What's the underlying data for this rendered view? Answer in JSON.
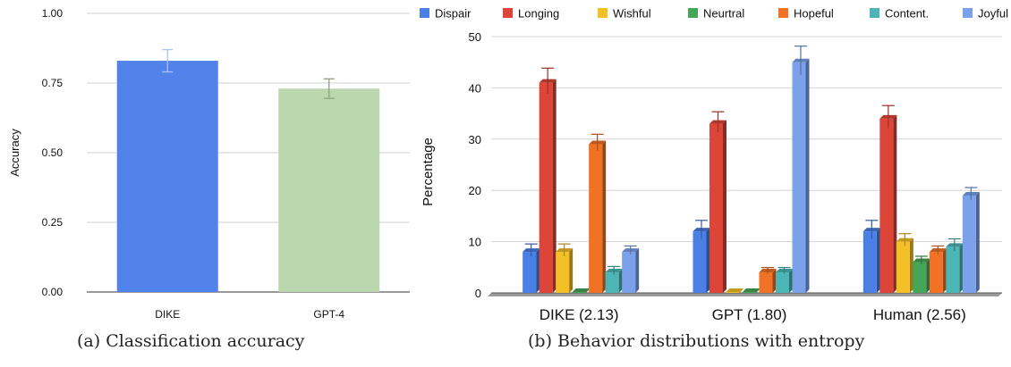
{
  "captions": {
    "a": "(a) Classification accuracy",
    "b": "(b) Behavior distributions with entropy"
  },
  "chart_data": [
    {
      "type": "bar",
      "title": "",
      "xlabel": "",
      "ylabel": "Accuracy",
      "ylim": [
        0,
        1
      ],
      "yticks": [
        "0.00",
        "0.25",
        "0.50",
        "0.75",
        "1.00"
      ],
      "categories": [
        "DIKE",
        "GPT-4"
      ],
      "values": [
        0.83,
        0.73
      ],
      "errors": [
        0.04,
        0.035
      ],
      "colors": [
        "#5183ea",
        "#bad7ad"
      ],
      "error_colors": [
        "#a9c2f3",
        "#8fa283"
      ],
      "grid": true,
      "legend": "none"
    },
    {
      "type": "bar",
      "title": "",
      "xlabel": "",
      "ylabel": "Percentage",
      "ylim": [
        0,
        50
      ],
      "yticks": [
        "0",
        "10",
        "20",
        "30",
        "40",
        "50"
      ],
      "categories": [
        "DIKE (2.13)",
        "GPT (1.80)",
        "Human (2.56)"
      ],
      "series": [
        {
          "name": "Dispair",
          "color": "#4a80e6",
          "values": [
            8,
            12,
            12
          ],
          "errors": [
            1.2,
            1.8,
            1.8
          ]
        },
        {
          "name": "Longing",
          "color": "#dc4537",
          "values": [
            41,
            33,
            34
          ],
          "errors": [
            2.5,
            2.0,
            2.2
          ]
        },
        {
          "name": "Wishful",
          "color": "#f4c028",
          "values": [
            8,
            0,
            10
          ],
          "errors": [
            1.2,
            0,
            1.2
          ]
        },
        {
          "name": "Neurtral",
          "color": "#46a658",
          "values": [
            0,
            0,
            6
          ],
          "errors": [
            0,
            0,
            0.8
          ]
        },
        {
          "name": "Hopeful",
          "color": "#f27225",
          "values": [
            29,
            4,
            8
          ],
          "errors": [
            1.6,
            0.6,
            0.8
          ]
        },
        {
          "name": "Content.",
          "color": "#4cb6b6",
          "values": [
            4,
            4,
            9
          ],
          "errors": [
            0.8,
            0.6,
            1.2
          ]
        },
        {
          "name": "Joyful",
          "color": "#7aa1ea",
          "values": [
            8,
            45,
            19
          ],
          "errors": [
            0.8,
            2.8,
            1.2
          ]
        }
      ],
      "grid": true,
      "legend": "top"
    }
  ]
}
